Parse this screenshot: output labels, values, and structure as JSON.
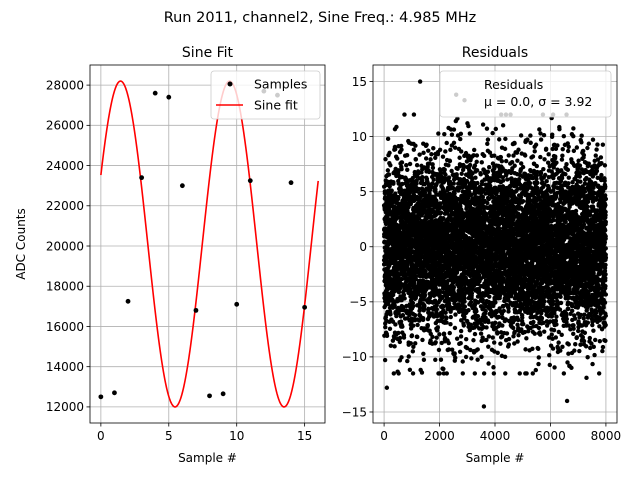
{
  "suptitle": "Run 2011, channel2, Sine Freq.: 4.985 MHz",
  "chart_data": [
    {
      "type": "line",
      "title": "Sine Fit",
      "xlabel": "Sample #",
      "ylabel": "ADC Counts",
      "xlim": [
        -0.8,
        16.5
      ],
      "ylim": [
        11200,
        29000
      ],
      "xticks": [
        0,
        5,
        10,
        15
      ],
      "yticks": [
        12000,
        14000,
        16000,
        18000,
        20000,
        22000,
        24000,
        26000,
        28000
      ],
      "grid": true,
      "legend": "top-right",
      "fit": {
        "offset": 20100,
        "amplitude": 8100,
        "period": 8.025,
        "phase": 6.72,
        "x_range": [
          0,
          16
        ]
      },
      "series": [
        {
          "name": "Samples",
          "style": "scatter",
          "color": "#000000",
          "x": [
            0,
            1,
            2,
            3,
            4,
            5,
            6,
            7,
            8,
            9,
            10,
            11,
            12,
            13,
            14,
            15
          ],
          "y": [
            12500,
            12700,
            17250,
            23400,
            27600,
            27400,
            23000,
            16800,
            12550,
            12650,
            17100,
            23250,
            27700,
            27500,
            23150,
            16950
          ]
        },
        {
          "name": "Sine fit",
          "style": "line",
          "color": "#ff0000"
        }
      ]
    },
    {
      "type": "scatter",
      "title": "Residuals",
      "xlabel": "Sample #",
      "ylabel": "",
      "xlim": [
        -400,
        8400
      ],
      "ylim": [
        -16,
        16.5
      ],
      "xticks": [
        0,
        2000,
        4000,
        6000,
        8000
      ],
      "yticks": [
        -15,
        -10,
        -5,
        0,
        5,
        10,
        15
      ],
      "grid": true,
      "legend": "top-right",
      "legend_lines": [
        "Residuals",
        "μ = 0.0, σ = 3.92"
      ],
      "n_points": 8000,
      "mean": 0.0,
      "sigma": 3.92,
      "color": "#000000",
      "outliers": [
        {
          "x": 1300,
          "y": 15.0
        },
        {
          "x": 2600,
          "y": 13.8
        },
        {
          "x": 3600,
          "y": -14.5
        },
        {
          "x": 6600,
          "y": -14.0
        },
        {
          "x": 100,
          "y": -12.8
        },
        {
          "x": 7300,
          "y": -11.9
        },
        {
          "x": 2900,
          "y": 13.3
        }
      ]
    }
  ]
}
